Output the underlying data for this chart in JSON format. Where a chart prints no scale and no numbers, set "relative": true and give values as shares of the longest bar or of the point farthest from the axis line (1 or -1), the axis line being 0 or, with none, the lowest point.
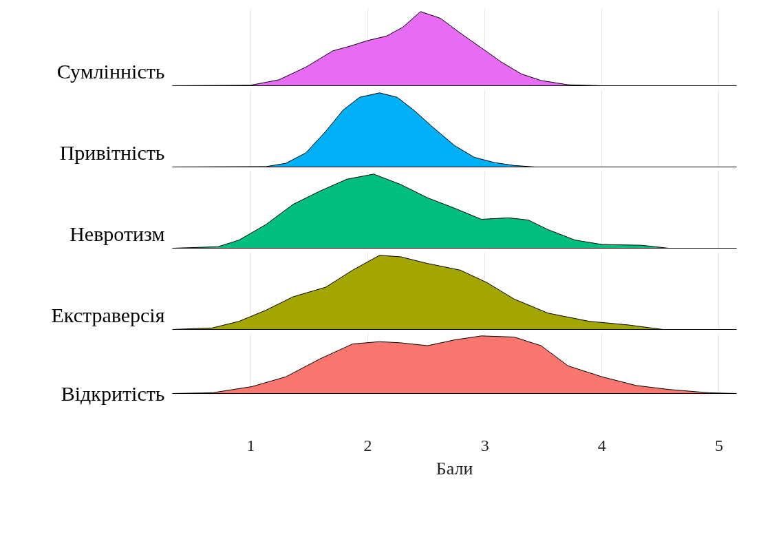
{
  "chart_data": [
    {
      "type": "area",
      "relative": true,
      "xlim": [
        0.33,
        5.15
      ],
      "xticks": [
        1,
        2,
        3,
        4,
        5
      ],
      "grid": "x",
      "tick_labels": false,
      "series": [
        {
          "name": "Сумлінність",
          "color": "#e76bf3",
          "x": [
            0.33,
            1.0,
            1.24,
            1.47,
            1.7,
            1.84,
            2.0,
            2.16,
            2.3,
            2.45,
            2.62,
            2.79,
            2.97,
            3.14,
            3.31,
            3.48,
            3.71,
            4.0,
            5.15
          ],
          "values": [
            0,
            0.007,
            0.08,
            0.25,
            0.47,
            0.53,
            0.61,
            0.67,
            0.79,
            1,
            0.91,
            0.71,
            0.51,
            0.32,
            0.16,
            0.07,
            0.013,
            0,
            0
          ]
        }
      ]
    },
    {
      "type": "area",
      "relative": true,
      "xlim": [
        0.33,
        5.15
      ],
      "xticks": [
        1,
        2,
        3,
        4,
        5
      ],
      "grid": "x",
      "tick_labels": false,
      "series": [
        {
          "name": "Привітність",
          "color": "#00b0f6",
          "x": [
            0.33,
            1.13,
            1.3,
            1.47,
            1.64,
            1.79,
            1.93,
            2.1,
            2.25,
            2.39,
            2.56,
            2.74,
            2.91,
            3.08,
            3.25,
            3.43,
            5.15
          ],
          "values": [
            0,
            0.005,
            0.05,
            0.19,
            0.48,
            0.77,
            0.94,
            1,
            0.94,
            0.77,
            0.53,
            0.29,
            0.13,
            0.06,
            0.02,
            0,
            0
          ]
        }
      ]
    },
    {
      "type": "area",
      "relative": true,
      "xlim": [
        0.33,
        5.15
      ],
      "xticks": [
        1,
        2,
        3,
        4,
        5
      ],
      "grid": "x",
      "tick_labels": false,
      "series": [
        {
          "name": "Невротизм",
          "color": "#00bf7d",
          "x": [
            0.33,
            0.72,
            0.9,
            1.13,
            1.36,
            1.59,
            1.82,
            2.05,
            2.28,
            2.51,
            2.74,
            2.97,
            3.2,
            3.37,
            3.54,
            3.77,
            4.0,
            4.34,
            4.57,
            5.15
          ],
          "values": [
            0,
            0.02,
            0.11,
            0.32,
            0.59,
            0.77,
            0.93,
            1,
            0.86,
            0.68,
            0.54,
            0.39,
            0.41,
            0.38,
            0.25,
            0.11,
            0.05,
            0.04,
            0,
            0
          ]
        }
      ]
    },
    {
      "type": "area",
      "relative": true,
      "xlim": [
        0.33,
        5.15
      ],
      "xticks": [
        1,
        2,
        3,
        4,
        5
      ],
      "grid": "x",
      "tick_labels": false,
      "series": [
        {
          "name": "Екстраверсія",
          "color": "#a3a500",
          "x": [
            0.33,
            0.67,
            0.9,
            1.13,
            1.36,
            1.64,
            1.87,
            2.1,
            2.28,
            2.51,
            2.79,
            3.02,
            3.25,
            3.54,
            3.89,
            4.23,
            4.52,
            5.15
          ],
          "values": [
            0,
            0.02,
            0.11,
            0.26,
            0.44,
            0.57,
            0.8,
            1,
            0.98,
            0.89,
            0.8,
            0.63,
            0.41,
            0.22,
            0.11,
            0.06,
            0,
            0
          ]
        }
      ]
    },
    {
      "type": "area",
      "relative": true,
      "xlabel": "Бали",
      "xlim": [
        0.33,
        5.15
      ],
      "xticks": [
        1,
        2,
        3,
        4,
        5
      ],
      "grid": "x",
      "series": [
        {
          "name": "Відкритість",
          "color": "#f8766d",
          "x": [
            0.33,
            0.67,
            1.01,
            1.3,
            1.59,
            1.87,
            2.1,
            2.28,
            2.51,
            2.74,
            2.97,
            3.25,
            3.48,
            3.71,
            4.0,
            4.29,
            4.57,
            4.92,
            5.15
          ],
          "values": [
            0,
            0.012,
            0.12,
            0.29,
            0.6,
            0.86,
            0.9,
            0.88,
            0.83,
            0.93,
            1,
            0.98,
            0.83,
            0.48,
            0.29,
            0.14,
            0.07,
            0.012,
            0
          ]
        }
      ]
    }
  ]
}
